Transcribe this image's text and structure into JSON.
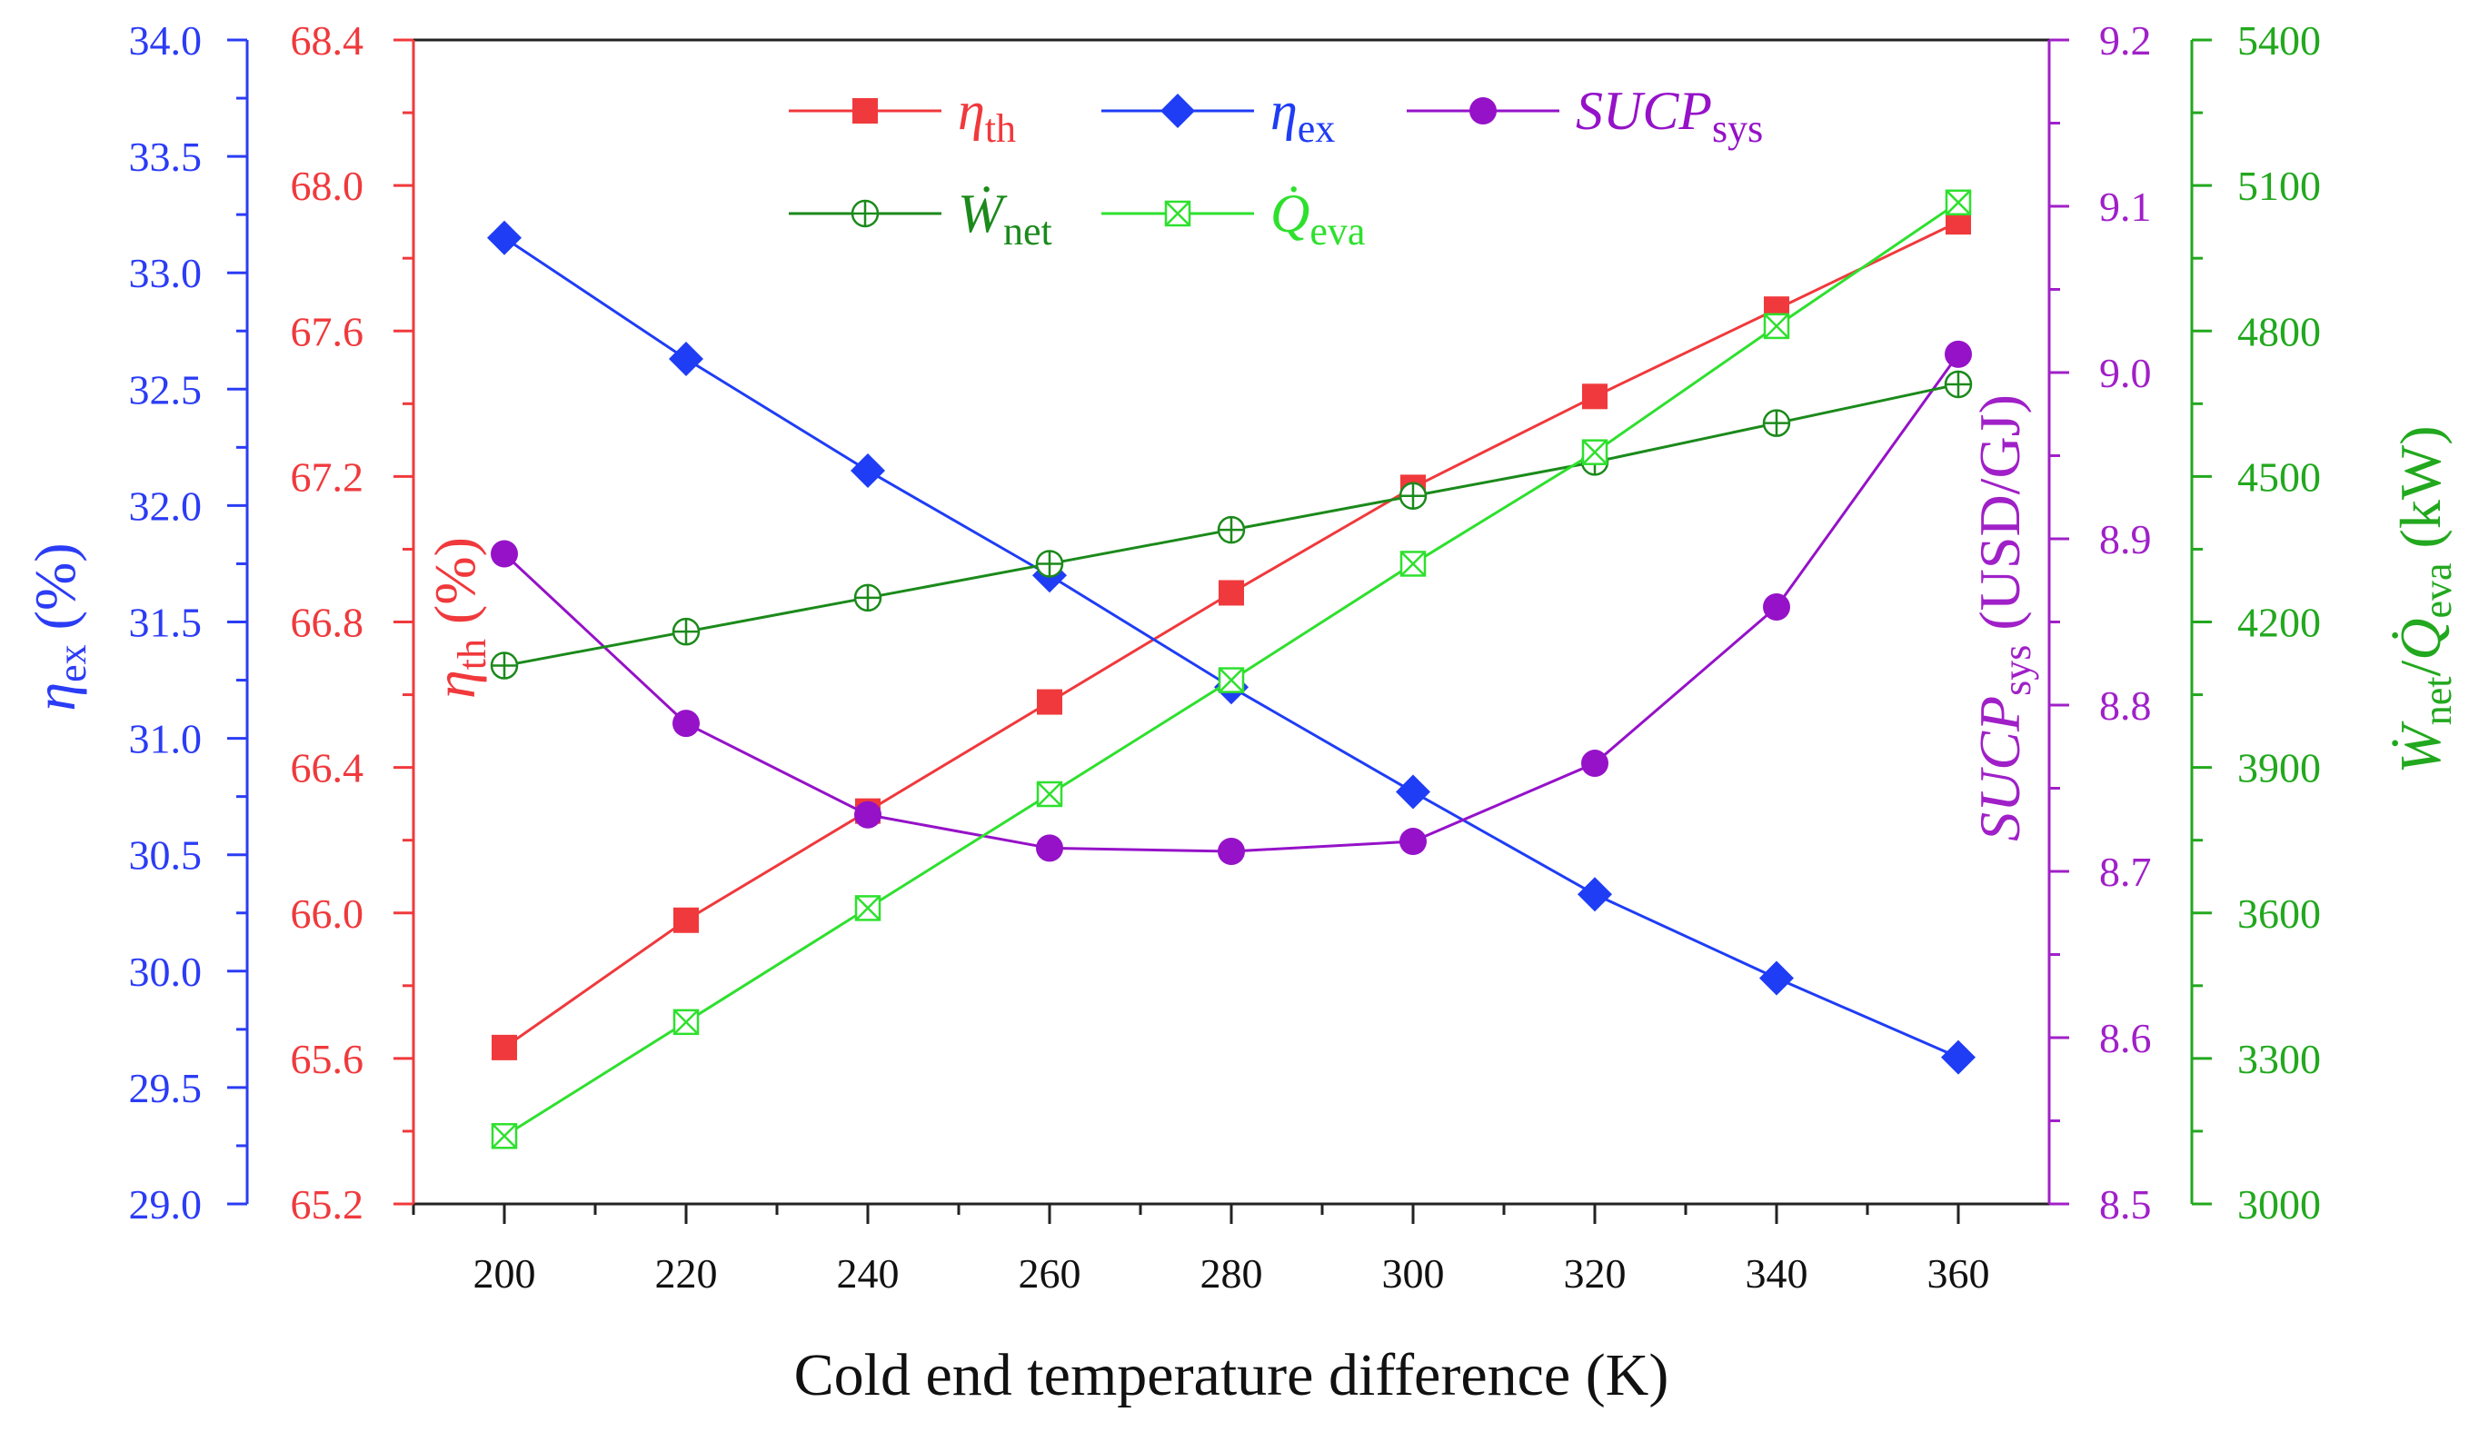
{
  "chart_data": {
    "type": "line",
    "xlabel": "Cold end temperature difference (K)",
    "x": [
      200,
      220,
      240,
      260,
      280,
      300,
      320,
      340,
      360
    ],
    "xlim": [
      190,
      370
    ],
    "xticks": [
      200,
      220,
      240,
      260,
      280,
      300,
      320,
      340,
      360
    ],
    "axes": {
      "eta_ex": {
        "title": "ηex (%)",
        "title_main": "η",
        "title_sub": "ex",
        "title_unit": " (%)",
        "color": "#2b3cf5",
        "ylim": [
          29.0,
          34.0
        ],
        "ticks": [
          "29.0",
          "29.5",
          "30.0",
          "30.5",
          "31.0",
          "31.5",
          "32.0",
          "32.5",
          "33.0",
          "33.5",
          "34.0"
        ]
      },
      "eta_th": {
        "title": "ηth (%)",
        "title_main": "η",
        "title_sub": "th",
        "title_unit": " (%)",
        "color": "#f0393c",
        "ylim": [
          65.2,
          68.4
        ],
        "ticks": [
          "65.2",
          "65.6",
          "66.0",
          "66.4",
          "66.8",
          "67.2",
          "67.6",
          "68.0",
          "68.4"
        ]
      },
      "sucp": {
        "title": "SUCPsys (USD/GJ)",
        "title_main": "SUCP",
        "title_sub": "sys",
        "title_unit": " (USD/GJ)",
        "color": "#a020c8",
        "ylim": [
          8.5,
          9.2
        ],
        "ticks": [
          "8.5",
          "8.6",
          "8.7",
          "8.8",
          "8.9",
          "9.0",
          "9.1",
          "9.2"
        ]
      },
      "power": {
        "title": "Ẇnet/Q̇eva (kW)",
        "title_w": "Ẇ",
        "title_w_sub": "net",
        "title_slash": "/",
        "title_q": "Q̇",
        "title_q_sub": "eva",
        "title_unit": " (kW)",
        "color": "#22a81e",
        "ylim": [
          3000,
          5400
        ],
        "ticks": [
          "3000",
          "3300",
          "3600",
          "3900",
          "4200",
          "4500",
          "4800",
          "5100",
          "5400"
        ]
      }
    },
    "series": [
      {
        "name": "ηth",
        "main": "η",
        "sub": "th",
        "axis": "eta_th",
        "color": "#f0393c",
        "marker": "square",
        "values": [
          65.63,
          65.98,
          66.28,
          66.58,
          66.88,
          67.17,
          67.42,
          67.66,
          67.9
        ]
      },
      {
        "name": "ηex",
        "main": "η",
        "sub": "ex",
        "axis": "eta_ex",
        "color": "#1f3df5",
        "marker": "diamond",
        "values": [
          33.15,
          32.63,
          32.15,
          31.7,
          31.22,
          30.77,
          30.33,
          29.97,
          29.63
        ]
      },
      {
        "name": "SUCPsys",
        "main": "SUCP",
        "sub": "sys",
        "axis": "sucp",
        "color": "#9512c8",
        "marker": "circle",
        "values": [
          8.891,
          8.789,
          8.734,
          8.714,
          8.712,
          8.718,
          8.765,
          8.859,
          9.011
        ]
      },
      {
        "name": "Ẇnet",
        "main": "Ẇ",
        "sub": "net",
        "axis": "power",
        "color": "#1b8a1b",
        "marker": "circle-plus",
        "values": [
          4110,
          4180,
          4250,
          4320,
          4390,
          4460,
          4530,
          4610,
          4690
        ]
      },
      {
        "name": "Q̇eva",
        "main": "Q̇",
        "sub": "eva",
        "axis": "power",
        "color": "#2ee02e",
        "marker": "square-x",
        "values": [
          3140,
          3375,
          3610,
          3845,
          4080,
          4320,
          4550,
          4810,
          5065
        ]
      }
    ],
    "legend_position": "top-center"
  }
}
